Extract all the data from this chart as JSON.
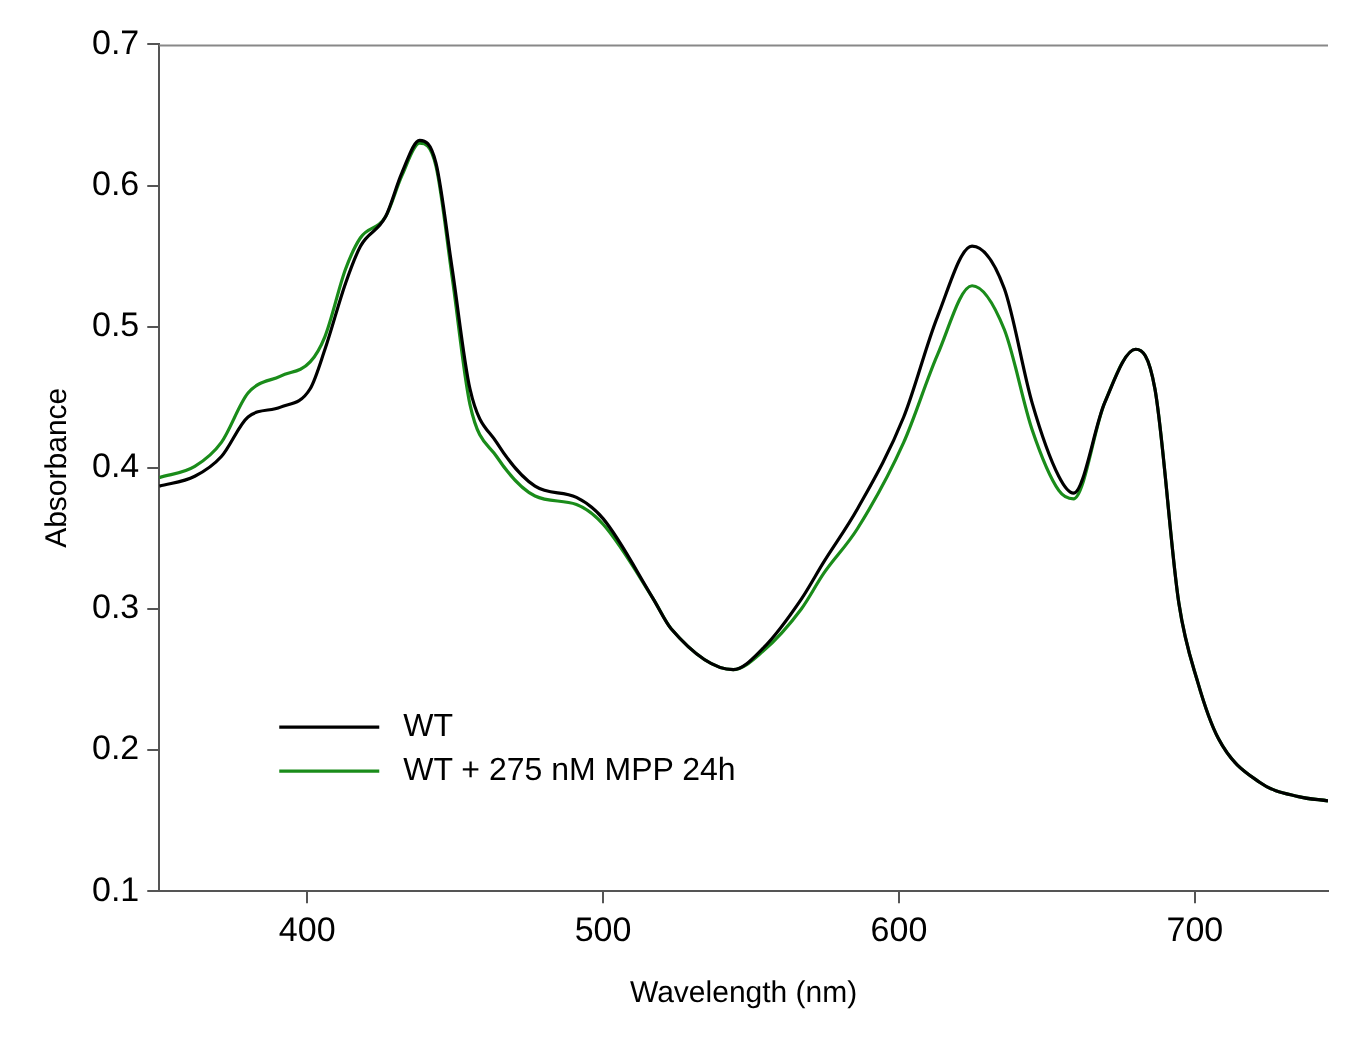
{
  "chart_data": {
    "type": "line",
    "xlabel": "Wavelength (nm)",
    "ylabel": "Absorbance",
    "xlim": [
      350,
      745
    ],
    "xticks": [
      400,
      500,
      600,
      700
    ],
    "ylim": [
      0.1,
      0.7
    ],
    "yticks": [
      0.1,
      0.2,
      0.3,
      0.4,
      0.5,
      0.6,
      0.7
    ],
    "grid": false,
    "legend": "bottom left",
    "marker": "none",
    "line_style": "solid",
    "series": [
      {
        "name": "WT",
        "color": "#000000",
        "x": [
          350,
          362,
          371,
          380,
          391,
          401,
          406,
          413,
          418,
          426.5,
          432,
          438,
          443.5,
          449,
          455,
          464,
          477,
          491,
          500,
          517,
          523,
          544,
          554,
          567,
          574.5,
          586,
          601.6,
          613,
          624.7,
          635.6,
          645,
          654,
          659,
          669.5,
          680,
          686.5,
          694.6,
          701,
          708,
          722,
          735,
          745
        ],
        "values": [
          0.387,
          0.394,
          0.408,
          0.436,
          0.443,
          0.456,
          0.484,
          0.531,
          0.557,
          0.578,
          0.609,
          0.632,
          0.616,
          0.541,
          0.456,
          0.418,
          0.387,
          0.379,
          0.364,
          0.307,
          0.286,
          0.257,
          0.272,
          0.307,
          0.333,
          0.371,
          0.436,
          0.507,
          0.557,
          0.527,
          0.446,
          0.394,
          0.382,
          0.446,
          0.484,
          0.456,
          0.304,
          0.248,
          0.208,
          0.177,
          0.167,
          0.164
        ]
      },
      {
        "name": "WT + 275 nM MPP 24h",
        "color": "#1a8c1a",
        "x": [
          350,
          362,
          371,
          380,
          391,
          401,
          406,
          413,
          418,
          426.5,
          432,
          438,
          443.5,
          449,
          455,
          464,
          477,
          491,
          500,
          517,
          523,
          544,
          554,
          567,
          574.5,
          586,
          601.6,
          613,
          624.7,
          635.6,
          645,
          654,
          659,
          669.5,
          680,
          686.5,
          694.6,
          701,
          708,
          722,
          735,
          745
        ],
        "values": [
          0.393,
          0.401,
          0.418,
          0.453,
          0.465,
          0.475,
          0.493,
          0.541,
          0.563,
          0.578,
          0.607,
          0.63,
          0.614,
          0.535,
          0.445,
          0.408,
          0.38,
          0.374,
          0.36,
          0.307,
          0.286,
          0.257,
          0.27,
          0.3,
          0.325,
          0.357,
          0.418,
          0.48,
          0.529,
          0.498,
          0.427,
          0.384,
          0.378,
          0.446,
          0.484,
          0.456,
          0.304,
          0.248,
          0.208,
          0.177,
          0.167,
          0.164
        ]
      }
    ]
  }
}
